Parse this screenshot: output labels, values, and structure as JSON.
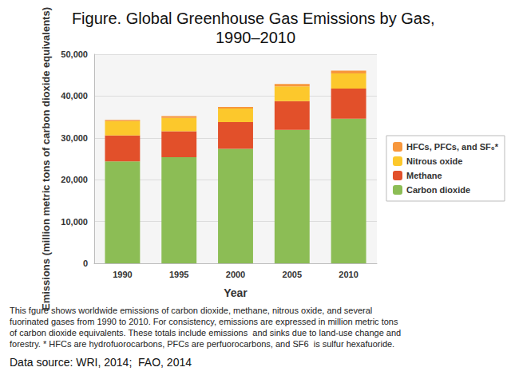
{
  "chart_data": {
    "type": "bar",
    "title": "Figure. Global Greenhouse Gas Emissions by Gas, 1990–2010",
    "xlabel": "Year",
    "ylabel": "Emissions (million metric tons of carbon dioxide equivalents)",
    "categories": [
      "1990",
      "1995",
      "2000",
      "2005",
      "2010"
    ],
    "series": [
      {
        "name": "Carbon dioxide",
        "color": "#8cbd55",
        "values": [
          24400,
          25400,
          27400,
          31900,
          34600
        ]
      },
      {
        "name": "Methane",
        "color": "#e2502a",
        "values": [
          6200,
          6200,
          6400,
          6900,
          7200
        ]
      },
      {
        "name": "Nitrous oxide",
        "color": "#fcc82c",
        "values": [
          3400,
          3200,
          3200,
          3500,
          3600
        ]
      },
      {
        "name": "HFCs, PFCs, and SF₆*",
        "color": "#f7973c",
        "values": [
          300,
          400,
          400,
          600,
          700
        ]
      }
    ],
    "stacked": true,
    "ylim": [
      0,
      50000
    ],
    "yticks": [
      0,
      {
        "value": 10000,
        "label": "10,000"
      },
      {
        "value": 20000,
        "label": "20,000"
      },
      {
        "value": 30000,
        "label": "30,000"
      },
      {
        "value": 40000,
        "label": "40,000"
      },
      {
        "value": 50000,
        "label": "50,000"
      }
    ],
    "grid": true,
    "legend": "right",
    "caption": "This fgure shows worldwide emissions of carbon dioxide, methane, nitrous oxide, and several fuorinated gases from 1990 to 2010. For consistency, emissions are expressed in million metric tons of carbon dioxide equivalents. These totals include emissions  and sinks due to land-use change and forestry. * HFCs are hydrofuorocarbons, PFCs are perfuorocarbons, and SF6  is sulfur hexafuoride.",
    "source": "Data source: WRI, 2014;  FAO, 2014"
  }
}
